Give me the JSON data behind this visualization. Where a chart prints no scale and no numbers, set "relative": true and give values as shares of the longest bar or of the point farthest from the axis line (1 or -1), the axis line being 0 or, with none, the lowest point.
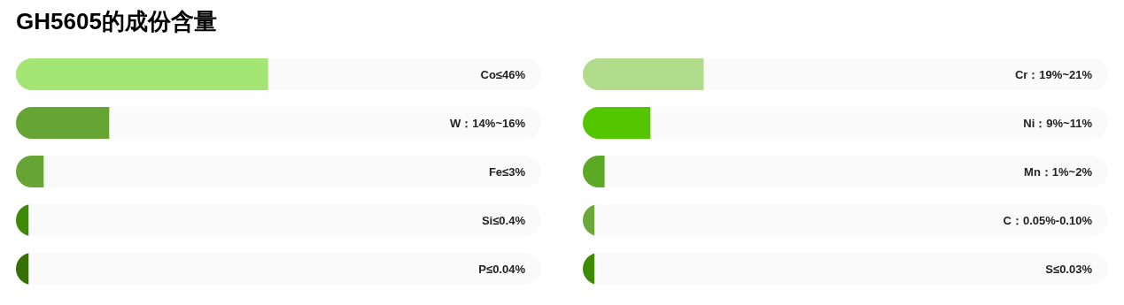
{
  "chart_data": [
    {
      "type": "bar",
      "orientation": "horizontal",
      "relative": true,
      "title": "GH5605的成份含量",
      "categories": [
        "Co≤46%",
        "W：14%~16%",
        "Fe≤3%",
        "Si≤0.4%",
        "P≤0.04%"
      ],
      "values": [
        1,
        0.37,
        0.11,
        0.05,
        0.05
      ],
      "colors": [
        "#a3e673",
        "#66a534",
        "#66a534",
        "#3f8a05",
        "#367000"
      ]
    },
    {
      "type": "bar",
      "orientation": "horizontal",
      "relative": true,
      "categories": [
        "Cr：19%~21%",
        "Ni：9%~11%",
        "Mn：1%~2%",
        "C：0.05%-0.10%",
        "S≤0.03%"
      ],
      "values": [
        1,
        0.56,
        0.18,
        0.096,
        0.096
      ],
      "colors": [
        "#b0dc8c",
        "#54c600",
        "#5ba924",
        "#6aa83a",
        "#3d8a05"
      ]
    }
  ]
}
